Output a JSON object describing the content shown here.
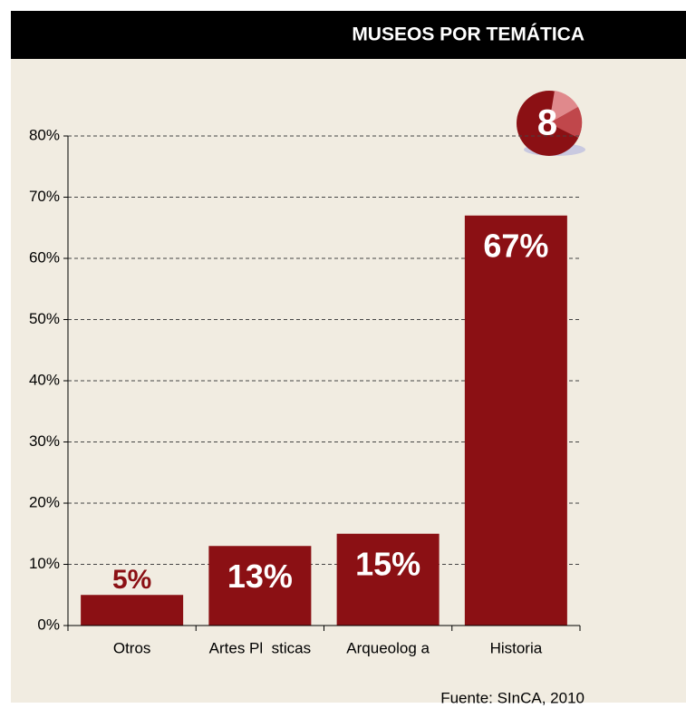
{
  "chart_data": {
    "type": "bar",
    "title": "MUSEOS POR TEMÁTICA",
    "badge": "8",
    "source": "Fuente: SInCA, 2010",
    "categories": [
      "Otros",
      "Artes Pl  sticas",
      "Arqueolog a",
      "Historia"
    ],
    "values": [
      5,
      13,
      15,
      67
    ],
    "value_labels": [
      "5%",
      "13%",
      "15%",
      "67%"
    ],
    "color": "#8b1014",
    "ylim": [
      0,
      80
    ],
    "yticks": [
      {
        "value": 0,
        "label": "0%"
      },
      {
        "value": 10,
        "label": "10%"
      },
      {
        "value": 20,
        "label": "20%"
      },
      {
        "value": 30,
        "label": "30%"
      },
      {
        "value": 40,
        "label": "40%"
      },
      {
        "value": 50,
        "label": "50%"
      },
      {
        "value": 60,
        "label": "60%"
      },
      {
        "value": 70,
        "label": "70%"
      },
      {
        "value": 80,
        "label": "80%"
      }
    ],
    "grid": true
  }
}
